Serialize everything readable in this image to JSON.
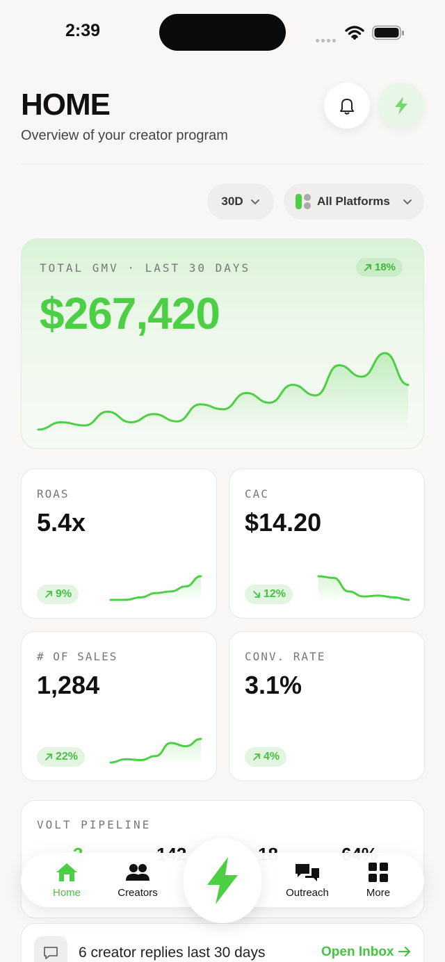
{
  "status_bar": {
    "time": "2:39"
  },
  "header": {
    "title": "HOME",
    "subtitle": "Overview of your creator program"
  },
  "icons": {
    "bell": "bell-icon",
    "bolt": "lightning-bolt-icon",
    "chevron": "chevron-down-icon",
    "platforms": "platforms-toggle-icon",
    "chat": "chat-bubble-icon",
    "arrow": "arrow-right-icon"
  },
  "filters": {
    "period": "30D",
    "platform": "All Platforms"
  },
  "gmv": {
    "label": "TOTAL GMV · LAST 30 DAYS",
    "value": "$267,420",
    "change": "18%",
    "trend_values": [
      3,
      12,
      8,
      25,
      12,
      22,
      13,
      34,
      28,
      48,
      36,
      58,
      45,
      82,
      68,
      97,
      58
    ]
  },
  "metrics": [
    {
      "label": "ROAS",
      "value": "5.4x",
      "change": "9%",
      "direction": "up",
      "trend": [
        2,
        2,
        5,
        10,
        12,
        18,
        30
      ]
    },
    {
      "label": "CAC",
      "value": "$14.20",
      "change": "12%",
      "direction": "down",
      "trend": [
        30,
        28,
        12,
        6,
        7,
        5,
        2
      ]
    },
    {
      "label": "# OF SALES",
      "value": "1,284",
      "change": "22%",
      "direction": "up",
      "trend": [
        2,
        6,
        5,
        10,
        26,
        22,
        31
      ]
    },
    {
      "label": "CONV. RATE",
      "value": "3.1%",
      "change": "4%",
      "direction": "up",
      "trend": []
    }
  ],
  "pipeline": {
    "label": "VOLT PIPELINE",
    "stats": [
      "3",
      "142",
      "18",
      "64%"
    ]
  },
  "inbox": {
    "text": "6 creator replies last 30 days",
    "link": "Open Inbox"
  },
  "tabs": [
    {
      "label": "Home",
      "icon": "home-icon",
      "active": true
    },
    {
      "label": "Creators",
      "icon": "creators-icon",
      "active": false
    },
    {
      "label": "Outreach",
      "icon": "outreach-icon",
      "active": false
    },
    {
      "label": "More",
      "icon": "grid-icon",
      "active": false
    }
  ],
  "colors": {
    "accent": "#4ccf45",
    "background": "#f8f7f5",
    "card": "#ffffff"
  }
}
